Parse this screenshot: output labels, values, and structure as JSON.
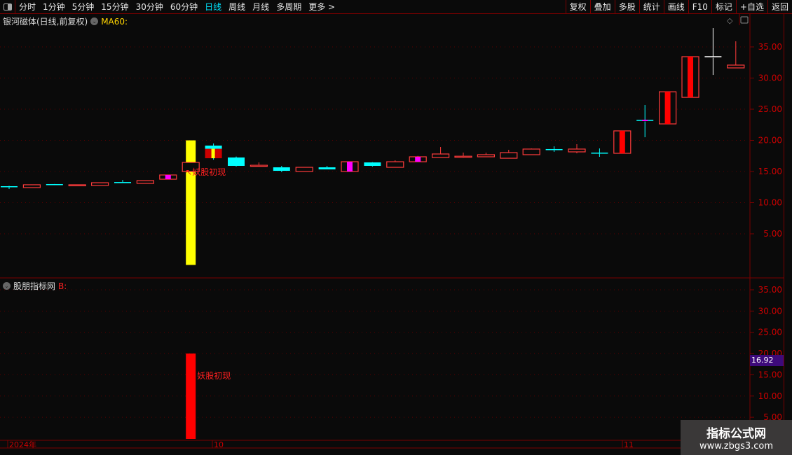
{
  "toolbar": {
    "periods": [
      "分时",
      "1分钟",
      "5分钟",
      "15分钟",
      "30分钟",
      "60分钟",
      "日线",
      "周线",
      "月线",
      "多周期",
      "更多 >"
    ],
    "active": "日线",
    "right": [
      "复权",
      "叠加",
      "多股",
      "统计",
      "画线",
      "F10",
      "标记",
      "+自选",
      "返回"
    ]
  },
  "main": {
    "title": "银河磁体(日线,前复权)",
    "ma_label": "MA60:",
    "signal_label": "妖股初现"
  },
  "sub": {
    "title": "股朋指标网",
    "b_label": "B:",
    "signal_label": "妖股初现",
    "badge": "16.92"
  },
  "xaxis": {
    "labels": [
      "2024年",
      "10",
      "11"
    ]
  },
  "watermark": {
    "line1": "指标公式网",
    "line2": "www.zbgs3.com"
  },
  "colors": {
    "up": "#ff3b3b",
    "down": "#00ffff",
    "signal": "#ffff00",
    "grid": "#7a0000",
    "axis_text": "#cc0000"
  },
  "chart_data": {
    "type": "candlestick",
    "yticks": [
      5,
      10,
      15,
      20,
      25,
      30,
      35
    ],
    "candles": [
      {
        "o": 12.64,
        "h": 12.7,
        "l": 12.19,
        "c": 12.64,
        "t": "down"
      },
      {
        "o": 12.42,
        "h": 12.87,
        "l": 12.42,
        "c": 12.87,
        "t": "up"
      },
      {
        "o": 12.98,
        "h": 13.0,
        "l": 12.9,
        "c": 12.98,
        "t": "down"
      },
      {
        "o": 12.8,
        "h": 12.87,
        "l": 12.8,
        "c": 12.87,
        "t": "up"
      },
      {
        "o": 12.75,
        "h": 13.2,
        "l": 12.75,
        "c": 13.2,
        "t": "up"
      },
      {
        "o": 13.31,
        "h": 13.65,
        "l": 13.3,
        "c": 13.31,
        "t": "down"
      },
      {
        "o": 13.09,
        "h": 13.54,
        "l": 13.09,
        "c": 13.54,
        "t": "up"
      },
      {
        "o": 13.76,
        "h": 14.5,
        "l": 13.76,
        "c": 14.44,
        "t": "up-magenta"
      },
      {
        "o": 15.0,
        "h": 16.46,
        "l": 15.0,
        "c": 16.46,
        "t": "up"
      },
      {
        "o": 19.16,
        "h": 19.5,
        "l": 16.9,
        "c": 17.13,
        "t": "mixed"
      },
      {
        "o": 17.25,
        "h": 17.4,
        "l": 15.8,
        "c": 15.9,
        "t": "down"
      },
      {
        "o": 15.9,
        "h": 16.46,
        "l": 15.9,
        "c": 16.0,
        "t": "up"
      },
      {
        "o": 15.67,
        "h": 15.9,
        "l": 14.9,
        "c": 15.11,
        "t": "down"
      },
      {
        "o": 15.0,
        "h": 15.67,
        "l": 15.0,
        "c": 15.67,
        "t": "up"
      },
      {
        "o": 15.67,
        "h": 15.9,
        "l": 15.34,
        "c": 15.34,
        "t": "down"
      },
      {
        "o": 15.0,
        "h": 16.57,
        "l": 15.0,
        "c": 16.57,
        "t": "up-magenta"
      },
      {
        "o": 16.46,
        "h": 16.5,
        "l": 15.8,
        "c": 15.9,
        "t": "down"
      },
      {
        "o": 15.67,
        "h": 16.8,
        "l": 15.67,
        "c": 16.57,
        "t": "up"
      },
      {
        "o": 16.57,
        "h": 17.5,
        "l": 16.57,
        "c": 17.36,
        "t": "up-magenta"
      },
      {
        "o": 17.25,
        "h": 18.93,
        "l": 17.25,
        "c": 17.81,
        "t": "up"
      },
      {
        "o": 17.36,
        "h": 18.03,
        "l": 17.2,
        "c": 17.45,
        "t": "up"
      },
      {
        "o": 17.36,
        "h": 18.03,
        "l": 17.36,
        "c": 17.7,
        "t": "up"
      },
      {
        "o": 17.13,
        "h": 18.48,
        "l": 17.13,
        "c": 18.03,
        "t": "up"
      },
      {
        "o": 17.7,
        "h": 18.7,
        "l": 17.7,
        "c": 18.6,
        "t": "up"
      },
      {
        "o": 18.6,
        "h": 19.04,
        "l": 18.15,
        "c": 18.6,
        "t": "down"
      },
      {
        "o": 18.15,
        "h": 19.38,
        "l": 17.92,
        "c": 18.6,
        "t": "up"
      },
      {
        "o": 18.03,
        "h": 18.7,
        "l": 17.36,
        "c": 18.03,
        "t": "down"
      },
      {
        "o": 17.92,
        "h": 21.52,
        "l": 17.92,
        "c": 21.52,
        "t": "up-fill"
      },
      {
        "o": 23.2,
        "h": 25.67,
        "l": 20.5,
        "c": 23.2,
        "t": "doji-cyan"
      },
      {
        "o": 22.64,
        "h": 27.8,
        "l": 22.64,
        "c": 27.8,
        "t": "up-fill"
      },
      {
        "o": 26.9,
        "h": 33.43,
        "l": 26.9,
        "c": 33.43,
        "t": "up-fill"
      },
      {
        "o": 33.43,
        "h": 38.03,
        "l": 30.5,
        "c": 33.43,
        "t": "doji-white"
      },
      {
        "o": 31.63,
        "h": 35.9,
        "l": 31.63,
        "c": 32.08,
        "t": "up"
      }
    ],
    "signal_index": 8,
    "signal_range": [
      0,
      20
    ],
    "sub_signal_range": [
      0,
      20
    ],
    "sub_yticks": [
      5,
      10,
      15,
      20,
      25,
      30,
      35
    ]
  }
}
